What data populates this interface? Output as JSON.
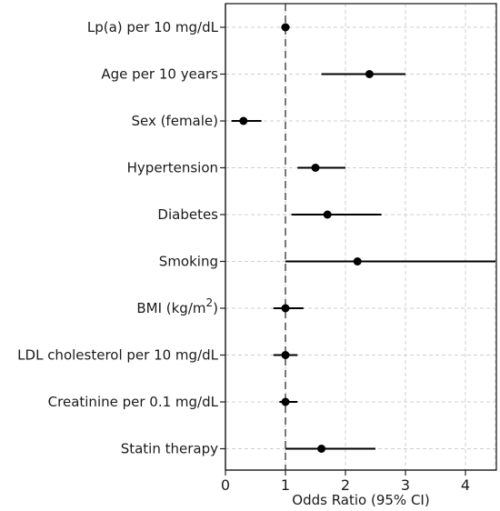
{
  "chart_data": {
    "type": "scatter",
    "subtype": "forest-plot",
    "xlabel": "Odds Ratio (95% CI)",
    "ylabel": "",
    "title": "",
    "xlim": [
      0,
      4.5
    ],
    "xticks": [
      0,
      1,
      2,
      3,
      4
    ],
    "reference_line": 1,
    "grid": true,
    "categories": [
      "Lp(a) per 10 mg/dL",
      "Age per 10 years",
      "Sex (female)",
      "Hypertension",
      "Diabetes",
      "Smoking",
      "BMI (kg/m2)",
      "LDL cholesterol per 10 mg/dL",
      "Creatinine per 0.1 mg/dL",
      "Statin therapy"
    ],
    "odds_ratio": [
      1.0,
      2.4,
      0.3,
      1.5,
      1.7,
      2.2,
      1.0,
      1.0,
      1.0,
      1.6
    ],
    "ci_lower": [
      0.93,
      1.6,
      0.1,
      1.2,
      1.1,
      1.0,
      0.8,
      0.8,
      0.9,
      1.0
    ],
    "ci_upper": [
      1.07,
      3.0,
      0.6,
      2.0,
      2.6,
      4.5,
      1.3,
      1.2,
      1.2,
      2.5
    ]
  }
}
